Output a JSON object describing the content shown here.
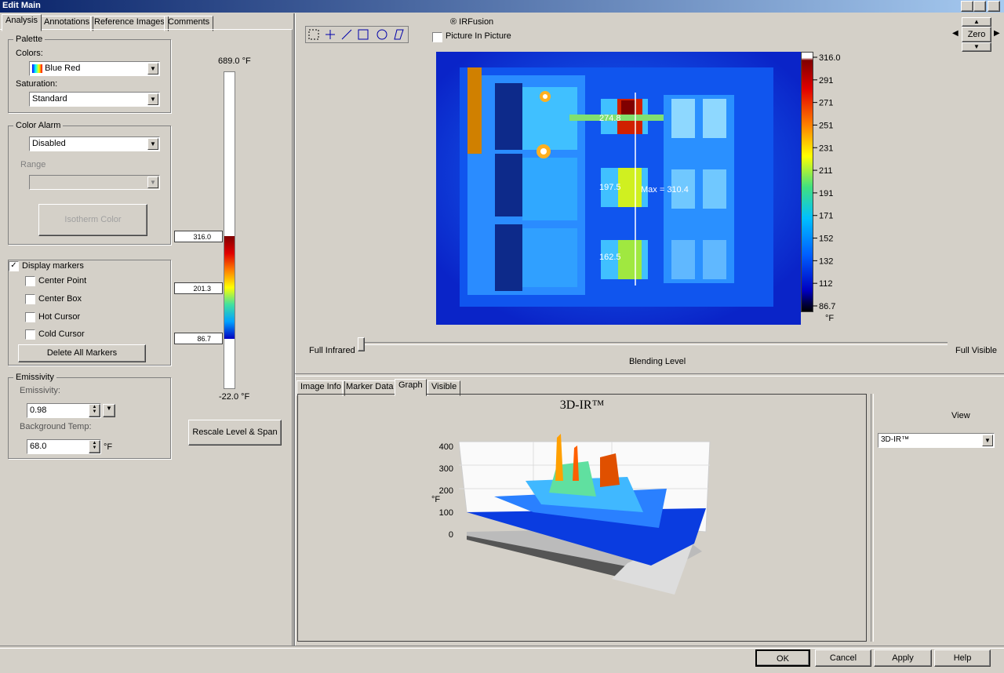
{
  "window": {
    "title": "Edit Main"
  },
  "tabs": [
    "Analysis",
    "Annotations",
    "Reference Images",
    "Comments"
  ],
  "palette": {
    "legend": "Palette",
    "colors_label": "Colors:",
    "colors_value": "Blue Red",
    "saturation_label": "Saturation:",
    "saturation_value": "Standard"
  },
  "color_alarm": {
    "legend": "Color Alarm",
    "value": "Disabled",
    "range_label": "Range",
    "isotherm_button": "Isotherm Color"
  },
  "markers": {
    "display": "Display markers",
    "options": [
      "Center Point",
      "Center Box",
      "Hot Cursor",
      "Cold Cursor"
    ],
    "delete_button": "Delete All Markers"
  },
  "emissivity": {
    "legend": "Emissivity",
    "emissivity_label": "Emissivity:",
    "emissivity_value": "0.98",
    "background_label": "Background Temp:",
    "background_value": "68.0",
    "unit": "°F"
  },
  "level_slider": {
    "top": "689.0 °F",
    "bottom": "-22.0 °F",
    "handles": [
      "316.0",
      "201.3",
      "86.7"
    ]
  },
  "rescale_button": "Rescale Level & Span",
  "toolbar": {
    "irfusion": "® IRFusion",
    "pip": "Picture In Picture"
  },
  "nav": {
    "zero": "Zero"
  },
  "image": {
    "spots": [
      "274.8",
      "197.5",
      "162.5"
    ],
    "max": "Max = 310.4"
  },
  "scale": {
    "ticks": [
      "316.0",
      "291",
      "271",
      "251",
      "231",
      "211",
      "191",
      "171",
      "152",
      "132",
      "112",
      "86.7"
    ],
    "unit": "°F"
  },
  "blending": {
    "left": "Full Infrared",
    "right": "Full Visible",
    "label": "Blending Level"
  },
  "bottom_tabs": [
    "Image Info",
    "Marker Data",
    "Graph",
    "Visible"
  ],
  "graph": {
    "title": "3D-IR™",
    "y_ticks": [
      "400",
      "300",
      "200",
      "100",
      "0"
    ],
    "y_label": "°F"
  },
  "view": {
    "label": "View",
    "value": "3D-IR™"
  },
  "buttons": [
    "OK",
    "Cancel",
    "Apply",
    "Help"
  ]
}
